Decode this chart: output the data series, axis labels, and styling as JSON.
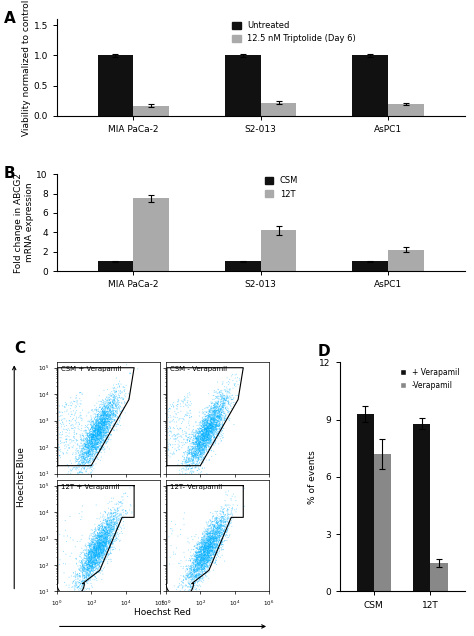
{
  "panel_A": {
    "categories": [
      "MIA PaCa-2",
      "S2-013",
      "AsPC1"
    ],
    "untreated": [
      1.0,
      1.0,
      1.0
    ],
    "treated": [
      0.17,
      0.22,
      0.2
    ],
    "untreated_err": [
      0.02,
      0.02,
      0.02
    ],
    "treated_err": [
      0.025,
      0.025,
      0.022
    ],
    "ylabel": "Viability normalized to control",
    "ylim": [
      0,
      1.6
    ],
    "yticks": [
      0.0,
      0.5,
      1.0,
      1.5
    ],
    "legend_labels": [
      "Untreated",
      "12.5 nM Triptolide (Day 6)"
    ],
    "colors": [
      "#111111",
      "#aaaaaa"
    ],
    "label": "A"
  },
  "panel_B": {
    "categories": [
      "MIA PaCa-2",
      "S2-013",
      "AsPC1"
    ],
    "csm": [
      1.0,
      1.0,
      1.0
    ],
    "t12": [
      7.5,
      4.2,
      2.2
    ],
    "csm_err": [
      0.05,
      0.05,
      0.05
    ],
    "t12_err": [
      0.35,
      0.45,
      0.25
    ],
    "ylabel": "Fold change in ABCG2\nmRNA expression",
    "ylim": [
      0,
      10
    ],
    "yticks": [
      0,
      2,
      4,
      6,
      8,
      10
    ],
    "legend_labels": [
      "CSM",
      "12T"
    ],
    "colors": [
      "#111111",
      "#aaaaaa"
    ],
    "label": "B"
  },
  "panel_D": {
    "categories": [
      "CSM",
      "12T"
    ],
    "plus_verapamil": [
      9.3,
      8.8
    ],
    "minus_verapamil": [
      7.2,
      1.5
    ],
    "plus_err": [
      0.4,
      0.3
    ],
    "minus_err": [
      0.8,
      0.2
    ],
    "ylabel": "% of events",
    "ylim": [
      0,
      12
    ],
    "yticks": [
      0,
      3,
      6,
      9,
      12
    ],
    "legend_labels": [
      "+ Verapamil",
      "-Verapamil"
    ],
    "colors": [
      "#111111",
      "#888888"
    ],
    "label": "D"
  },
  "panel_C": {
    "label": "C",
    "titles": [
      "CSM + Verapamil",
      "CSM - Verapamil",
      "12T + Verapamil",
      "12T- Verapamil"
    ],
    "xlabel": "Hoechst Red",
    "ylabel": "Hoechst Blue",
    "xlim_log": [
      0,
      6
    ],
    "ylim_log": [
      1,
      5.2
    ]
  }
}
